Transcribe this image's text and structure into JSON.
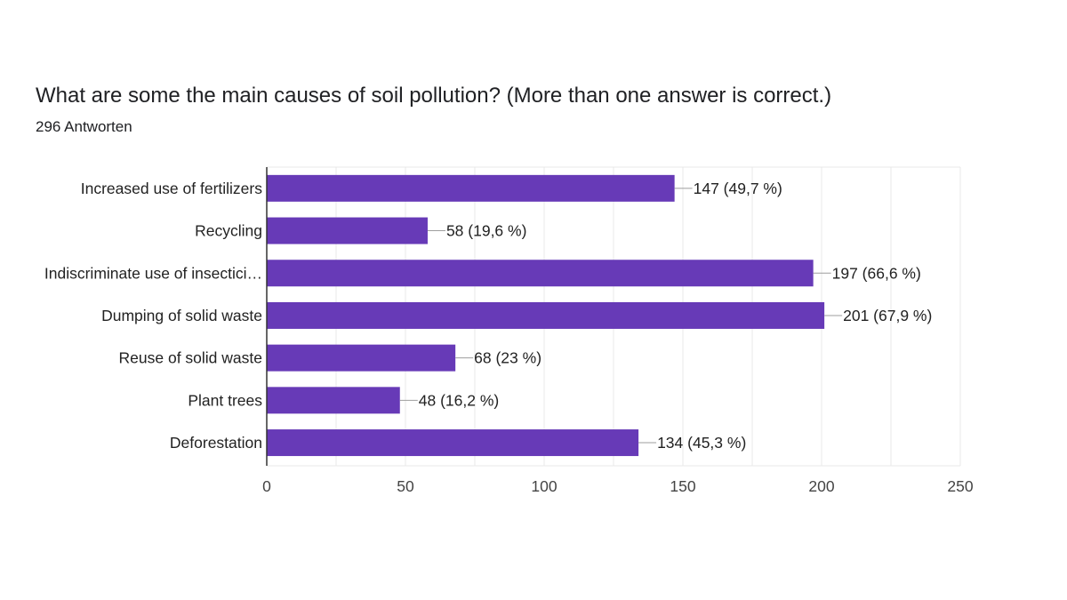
{
  "chart_data": {
    "type": "bar",
    "orientation": "horizontal",
    "title": "What are some the main causes of soil pollution? (More than one answer is correct.)",
    "subtitle": "296 Antworten",
    "categories": [
      "Increased use of fertilizers",
      "Recycling",
      "Indiscriminate use of insectici…",
      "Dumping of solid waste",
      "Reuse of solid waste",
      "Plant trees",
      "Deforestation"
    ],
    "values": [
      147,
      58,
      197,
      201,
      68,
      48,
      134
    ],
    "data_labels": [
      "147 (49,7 %)",
      "58 (19,6 %)",
      "197 (66,6 %)",
      "201 (67,9 %)",
      "68 (23 %)",
      "48 (16,2 %)",
      "134 (45,3 %)"
    ],
    "xlim": [
      0,
      250
    ],
    "xticks": [
      0,
      50,
      100,
      150,
      200,
      250
    ],
    "xtick_labels": [
      "0",
      "50",
      "100",
      "150",
      "200",
      "250"
    ],
    "grid": true,
    "colors": {
      "bar": "#673ab7",
      "grid": "#e8e8e8",
      "axis": "#333333",
      "leader": "#9e9e9e"
    }
  }
}
